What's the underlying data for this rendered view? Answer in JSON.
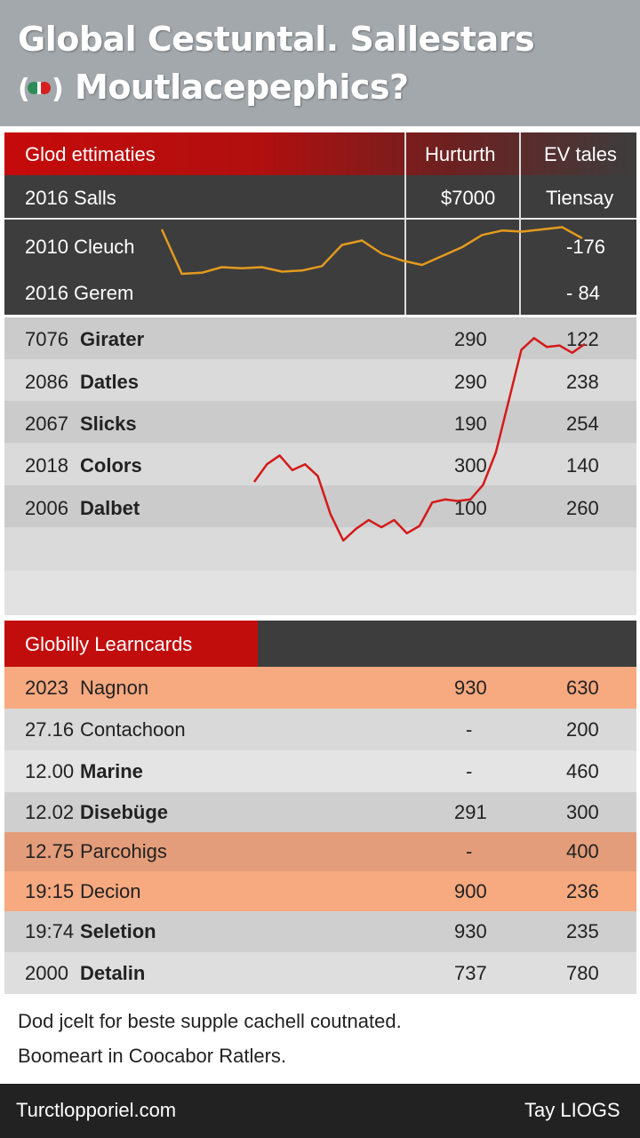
{
  "header": {
    "title_line1": "Global Cestuntal. Sallestars",
    "title_line2": "Moutlacepephics?",
    "flag_icon": "flag-icon"
  },
  "section1": {
    "header": {
      "label": "Glod ettimaties",
      "col2": "Hurturth",
      "col3": "EV tales"
    },
    "rows": [
      {
        "label": "2016 Salls",
        "col2": "$7000",
        "col3": "Tiensay"
      },
      {
        "label": "2010 Cleuch",
        "col2": "",
        "col3": "-176"
      },
      {
        "label": "2016 Gerem",
        "col2": "",
        "col3": "- 84"
      }
    ]
  },
  "section2": {
    "rows": [
      {
        "year": "7076",
        "name": "Girater",
        "col2": "290",
        "col3": "122"
      },
      {
        "year": "2086",
        "name": "Datles",
        "col2": "290",
        "col3": "238"
      },
      {
        "year": "2067",
        "name": "Slicks",
        "col2": "190",
        "col3": "254"
      },
      {
        "year": "2018",
        "name": "Colors",
        "col2": "300",
        "col3": "140"
      },
      {
        "year": "2006",
        "name": "Dalbet",
        "col2": "100",
        "col3": "260"
      }
    ]
  },
  "section3": {
    "header": "Globilly Learncards",
    "rows": [
      {
        "year": "2023",
        "name": "Nagnon",
        "col2": "930",
        "col3": "630",
        "bold": false,
        "bg": "#f7a980"
      },
      {
        "year": "27.16",
        "name": "Contachoon",
        "col2": "-",
        "col3": "200",
        "bold": false,
        "bg": "#d9d9d9"
      },
      {
        "year": "12.00",
        "name": "Marine",
        "col2": "-",
        "col3": "460",
        "bold": true,
        "bg": "#e4e4e4"
      },
      {
        "year": "12.02",
        "name": "Disebüge",
        "col2": "291",
        "col3": "300",
        "bold": true,
        "bg": "#cfcfcf"
      },
      {
        "year": "12.75",
        "name": "Parcohigs",
        "col2": "-",
        "col3": "400",
        "bold": false,
        "bg": "#e39d7a"
      },
      {
        "year": "19:15",
        "name": "Decion",
        "col2": "900",
        "col3": "236",
        "bold": false,
        "bg": "#f7a980"
      },
      {
        "year": "19:74",
        "name": "Seletion",
        "col2": "930",
        "col3": "235",
        "bold": true,
        "bg": "#cfcfcf"
      },
      {
        "year": "2000",
        "name": "Detalin",
        "col2": "737",
        "col3": "780",
        "bold": true,
        "bg": "#dedede"
      }
    ]
  },
  "footnote": {
    "line1": "Dod jcelt for beste supple cachell coutnated.",
    "line2": "Boomeart in Coocabor Ratlers."
  },
  "footer": {
    "left": "Turctlopporiel.com",
    "right": "Tay LIOGS"
  },
  "colors": {
    "accent_red": "#c20d0d",
    "line_orange": "#e39a1e",
    "line_red": "#d41a1a",
    "highlight_peach": "#f7a980"
  },
  "chart_data": [
    {
      "type": "line",
      "title": "",
      "series": [
        {
          "color": "#e39a1e",
          "values": [
            48,
            8,
            9,
            14,
            13,
            14,
            10,
            11,
            15,
            34,
            38,
            26,
            20,
            16,
            24,
            32,
            43,
            47,
            46,
            48,
            50,
            40
          ]
        }
      ]
    },
    {
      "type": "line",
      "title": "",
      "series": [
        {
          "color": "#d41a1a",
          "values": [
            40,
            52,
            58,
            48,
            52,
            44,
            18,
            0,
            8,
            14,
            9,
            14,
            5,
            10,
            26,
            28,
            27,
            28,
            38,
            60,
            95,
            130,
            138,
            132,
            133,
            128,
            134
          ]
        }
      ]
    }
  ]
}
